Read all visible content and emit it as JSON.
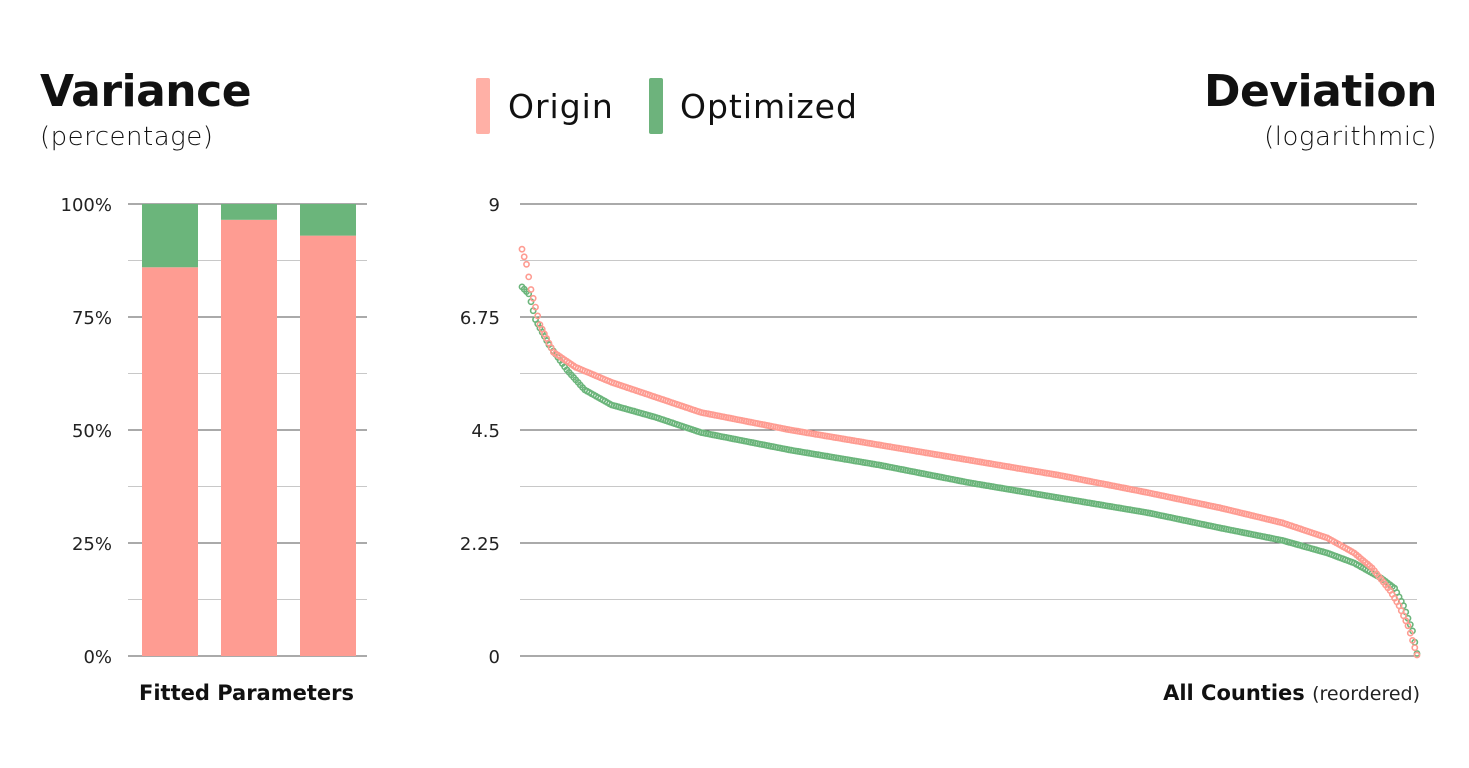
{
  "left": {
    "title": "Variance",
    "subtitle": "(percentage)",
    "xlabel": "Fitted Parameters"
  },
  "right": {
    "title": "Deviation",
    "subtitle": "(logarithmic)",
    "xlabel": "All Counties",
    "xlabel_suffix": "(reordered)"
  },
  "legend": [
    {
      "name": "Origin",
      "color": "#ffb0a6"
    },
    {
      "name": "Optimized",
      "color": "#6db37c"
    }
  ],
  "colors": {
    "origin": "#fe9c92",
    "optimized": "#6bb57b",
    "grid_major": "#555555",
    "grid_minor": "#c8c8c8"
  },
  "chart_data": [
    {
      "type": "bar",
      "stacked": true,
      "categories": [
        "",
        "",
        ""
      ],
      "series": [
        {
          "name": "Origin",
          "values": [
            86,
            96.5,
            93
          ]
        },
        {
          "name": "Optimized",
          "values": [
            14,
            3.5,
            7
          ]
        }
      ],
      "xlabel": "Fitted Parameters",
      "ylim": [
        0,
        100
      ],
      "yticks": [
        "0%",
        "25%",
        "50%",
        "75%",
        "100%"
      ],
      "grid": true
    },
    {
      "type": "scatter",
      "xlabel": "All Counties (reordered)",
      "ylim": [
        0,
        9
      ],
      "yticks": [
        "0",
        "2.25",
        "4.5",
        "6.75",
        "9"
      ],
      "grid": true,
      "series": [
        {
          "name": "Origin",
          "count": 400,
          "profile": [
            [
              0,
              8.1
            ],
            [
              0.005,
              7.8
            ],
            [
              0.01,
              7.3
            ],
            [
              0.02,
              6.6
            ],
            [
              0.035,
              6.05
            ],
            [
              0.06,
              5.75
            ],
            [
              0.1,
              5.45
            ],
            [
              0.15,
              5.15
            ],
            [
              0.2,
              4.85
            ],
            [
              0.3,
              4.5
            ],
            [
              0.4,
              4.2
            ],
            [
              0.5,
              3.9
            ],
            [
              0.6,
              3.6
            ],
            [
              0.7,
              3.25
            ],
            [
              0.78,
              2.95
            ],
            [
              0.85,
              2.65
            ],
            [
              0.9,
              2.35
            ],
            [
              0.93,
              2.05
            ],
            [
              0.95,
              1.75
            ],
            [
              0.97,
              1.3
            ],
            [
              0.98,
              1.0
            ],
            [
              0.99,
              0.6
            ],
            [
              1.0,
              0.02
            ]
          ]
        },
        {
          "name": "Optimized",
          "count": 400,
          "profile": [
            [
              0,
              7.35
            ],
            [
              0.008,
              7.2
            ],
            [
              0.015,
              6.7
            ],
            [
              0.03,
              6.2
            ],
            [
              0.05,
              5.7
            ],
            [
              0.07,
              5.3
            ],
            [
              0.1,
              5.0
            ],
            [
              0.15,
              4.75
            ],
            [
              0.2,
              4.45
            ],
            [
              0.3,
              4.1
            ],
            [
              0.4,
              3.8
            ],
            [
              0.5,
              3.45
            ],
            [
              0.6,
              3.15
            ],
            [
              0.7,
              2.85
            ],
            [
              0.78,
              2.55
            ],
            [
              0.85,
              2.3
            ],
            [
              0.9,
              2.05
            ],
            [
              0.93,
              1.85
            ],
            [
              0.96,
              1.55
            ],
            [
              0.975,
              1.35
            ],
            [
              0.985,
              1.0
            ],
            [
              0.995,
              0.5
            ],
            [
              1.0,
              0.05
            ]
          ]
        }
      ]
    }
  ]
}
